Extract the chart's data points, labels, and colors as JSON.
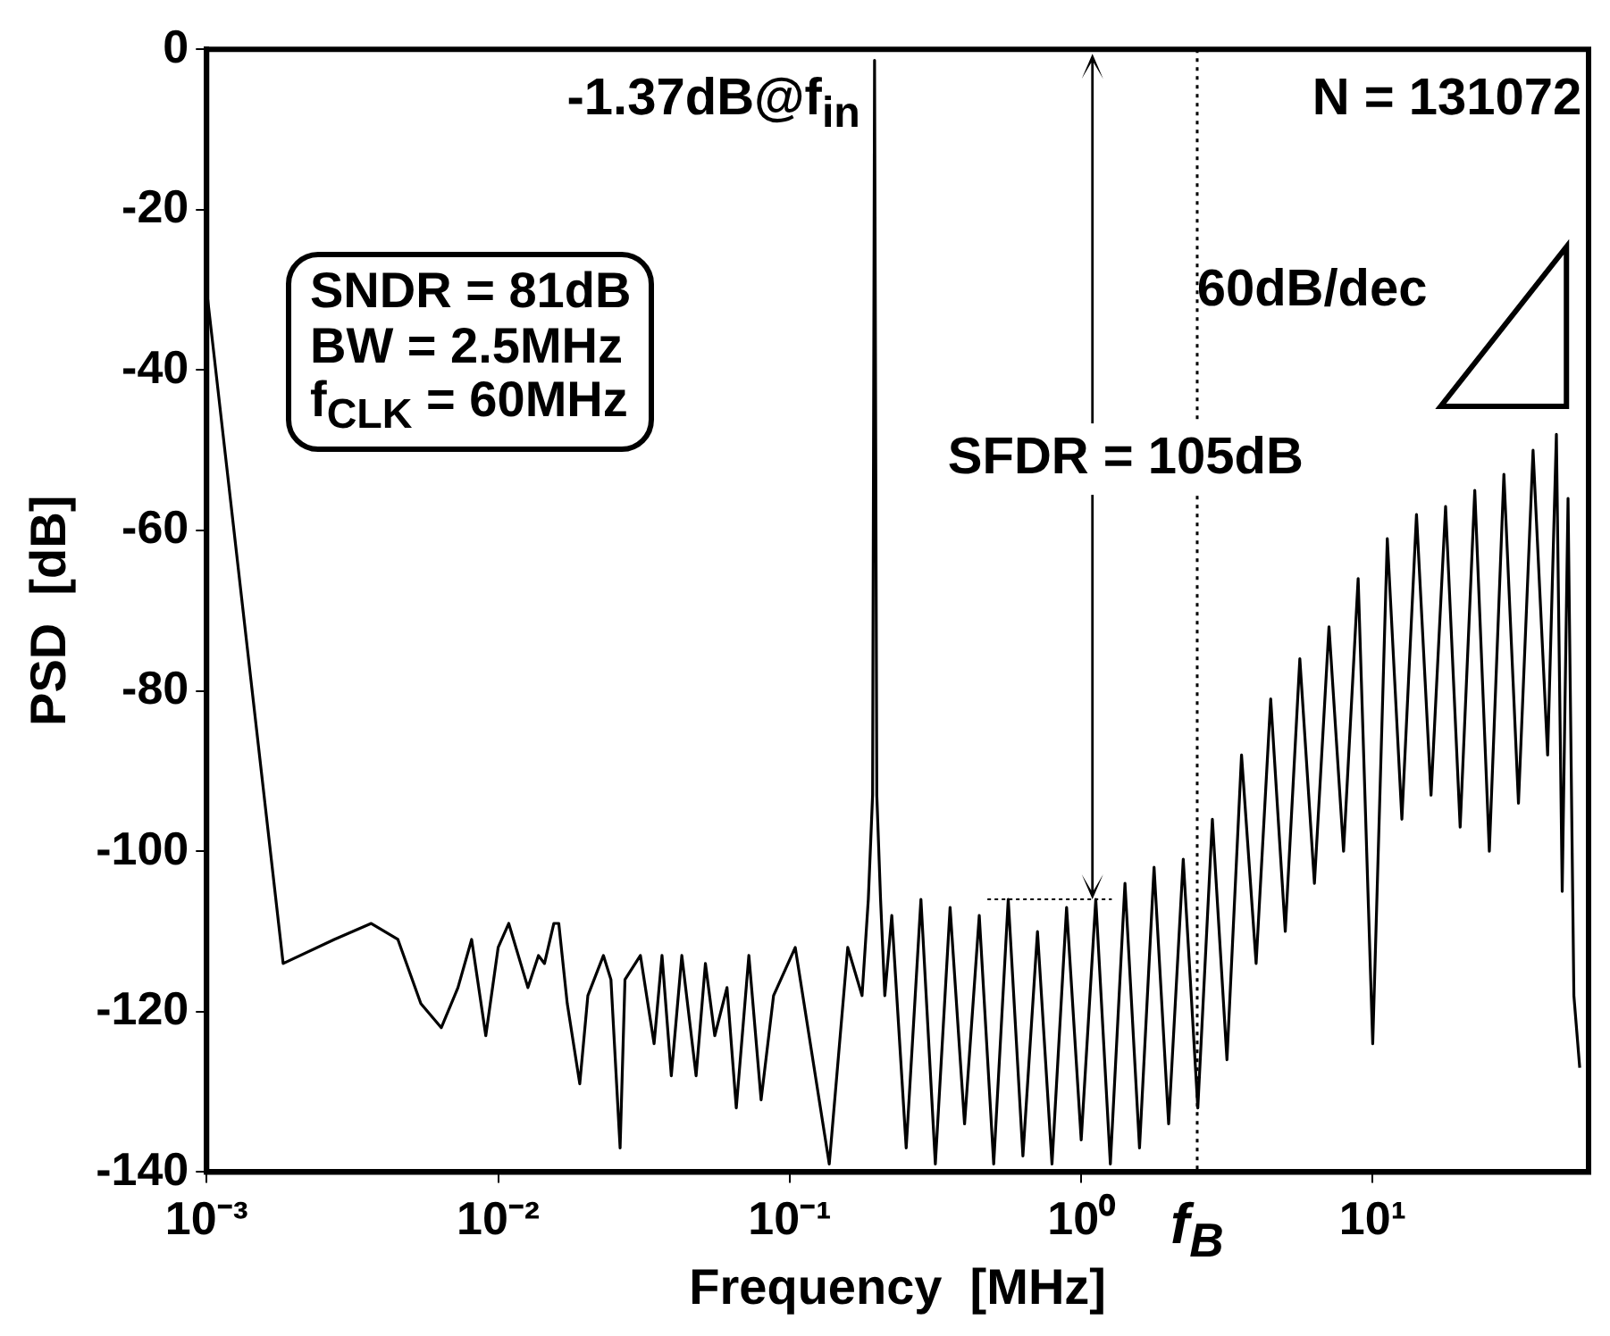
{
  "chart_data": {
    "type": "line",
    "xlabel": "Frequency  [MHz]",
    "ylabel": "PSD  [dB]",
    "log": "x",
    "grid": false,
    "legend": false,
    "marker": "none",
    "xlim": [
      0.001,
      55
    ],
    "xticks": [
      {
        "value": 0.001,
        "label": "10⁻³"
      },
      {
        "value": 0.01,
        "label": "10⁻²"
      },
      {
        "value": 0.1,
        "label": "10⁻¹"
      },
      {
        "value": 1,
        "label": "10⁰"
      },
      {
        "value": 10,
        "label": "10¹"
      }
    ],
    "ylim": [
      -140,
      0
    ],
    "yticks": [
      -140,
      -120,
      -100,
      -80,
      -60,
      -40,
      -20,
      0
    ],
    "x": [
      0.001,
      0.00183,
      0.00274,
      0.00367,
      0.00453,
      0.00543,
      0.00638,
      0.00728,
      0.00811,
      0.00907,
      0.01,
      0.01087,
      0.01265,
      0.01375,
      0.01442,
      0.01552,
      0.01614,
      0.01726,
      0.01905,
      0.02031,
      0.02297,
      0.02437,
      0.0262,
      0.02723,
      0.03076,
      0.03427,
      0.03648,
      0.03926,
      0.04266,
      0.04775,
      0.0514,
      0.05534,
      0.06095,
      0.06559,
      0.07244,
      0.0798,
      0.08805,
      0.1045,
      0.1367,
      0.1582,
      0.1771,
      0.1861,
      0.1925,
      0.1955,
      0.199,
      0.205,
      0.212,
      0.224,
      0.251,
      0.282,
      0.316,
      0.355,
      0.398,
      0.447,
      0.501,
      0.562,
      0.631,
      0.708,
      0.794,
      0.891,
      1.0,
      1.122,
      1.259,
      1.413,
      1.585,
      1.778,
      1.995,
      2.239,
      2.512,
      2.818,
      3.162,
      3.548,
      3.981,
      4.467,
      5.012,
      5.623,
      6.31,
      7.079,
      7.943,
      8.913,
      10.0,
      11.22,
      12.59,
      14.13,
      15.85,
      17.78,
      19.95,
      22.39,
      25.12,
      28.18,
      31.62,
      35.48,
      39.81,
      42.66,
      44.67,
      46.77,
      48.98,
      51.29
    ],
    "series": [
      {
        "color": "#000000",
        "values": [
          -30,
          -114,
          -111,
          -109,
          -111,
          -119,
          -122,
          -117,
          -111,
          -123,
          -112,
          -109,
          -117,
          -113,
          -114,
          -109,
          -109,
          -119,
          -129,
          -118,
          -113,
          -116,
          -137,
          -116,
          -113,
          -124,
          -113,
          -128,
          -113,
          -128,
          -114,
          -123,
          -117,
          -132,
          -113,
          -131,
          -118,
          -112,
          -139,
          -112,
          -118,
          -106,
          -93,
          -1.37,
          -93,
          -106,
          -118,
          -108,
          -137,
          -106,
          -139,
          -107,
          -134,
          -108,
          -139,
          -106,
          -138,
          -110,
          -139,
          -107,
          -136,
          -106,
          -139,
          -104,
          -137,
          -102,
          -134,
          -101,
          -132,
          -96,
          -126,
          -88,
          -114,
          -81,
          -110,
          -76,
          -104,
          -72,
          -100,
          -66,
          -124,
          -61,
          -96,
          -58,
          -93,
          -57,
          -97,
          -55,
          -100,
          -53,
          -94,
          -50,
          -88,
          -48,
          -105,
          -56,
          -118,
          -127
        ]
      }
    ],
    "ref_lines": [
      {
        "axis": "x",
        "value": 2.5,
        "label": "f$_{B}$",
        "line_style": "dotted",
        "color": "#000000"
      }
    ],
    "annotations": [
      {
        "text": "-1.37dB@f$_{in}$",
        "x": 0.1955,
        "y": -1.37
      },
      "N = 131072",
      "SNDR = 81dB",
      "BW = 2.5MHz",
      "f$_{CLK}$ = 60MHz",
      "60dB/dec",
      "SFDR = 105dB"
    ]
  }
}
